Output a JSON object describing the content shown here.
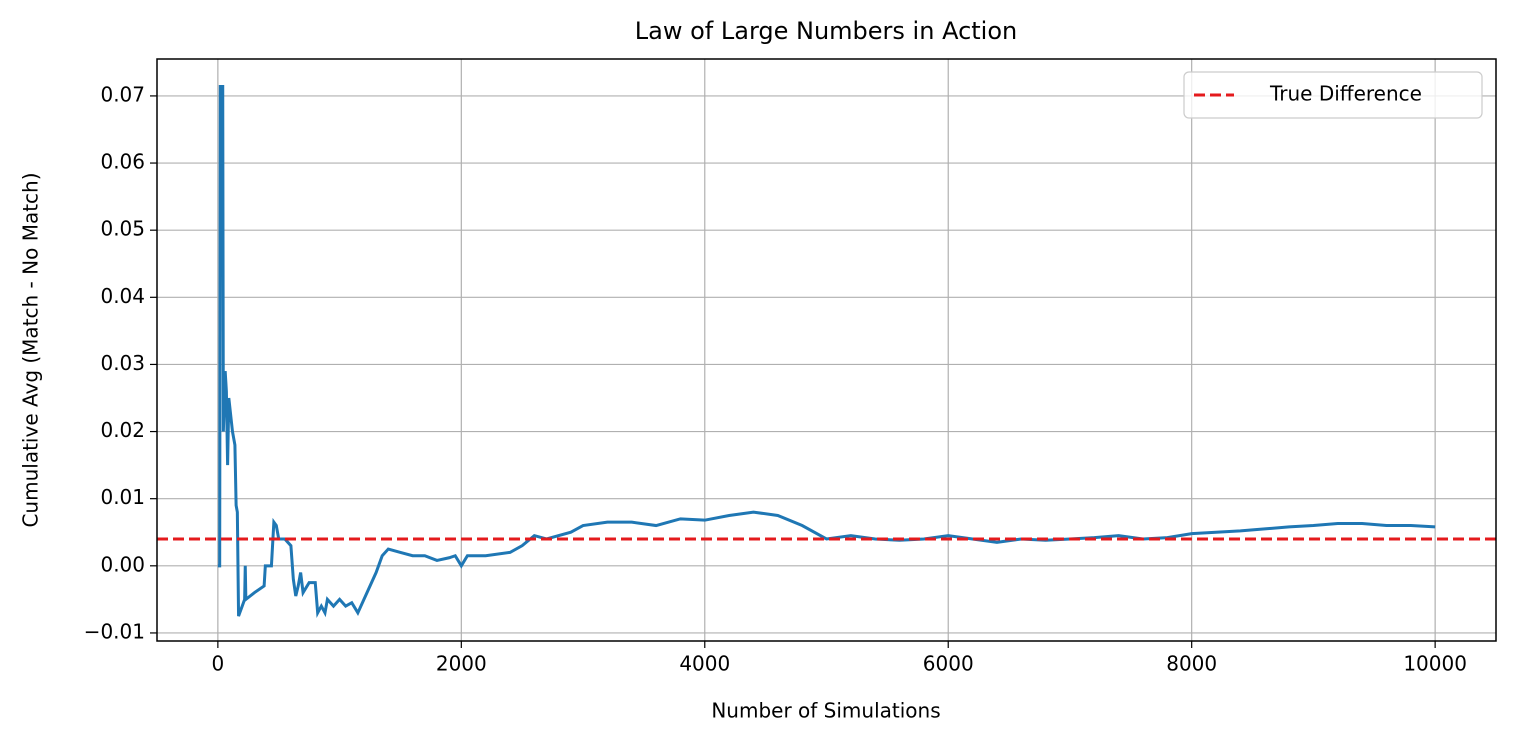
{
  "chart_data": {
    "type": "line",
    "title": "Law of Large Numbers in Action",
    "x_label": "Number of Simulations",
    "y_label": "Cumulative Avg (Match - No Match)",
    "x": [
      0,
      15,
      20,
      40,
      45,
      60,
      70,
      80,
      90,
      120,
      140,
      150,
      160,
      170,
      200,
      220,
      225,
      230,
      300,
      380,
      390,
      440,
      460,
      480,
      500,
      550,
      600,
      620,
      640,
      660,
      680,
      700,
      750,
      800,
      820,
      850,
      880,
      900,
      950,
      1000,
      1050,
      1100,
      1150,
      1200,
      1300,
      1350,
      1400,
      1500,
      1600,
      1700,
      1800,
      1900,
      1950,
      2000,
      2050,
      2200,
      2400,
      2500,
      2600,
      2700,
      2900,
      3000,
      3200,
      3400,
      3600,
      3800,
      4000,
      4200,
      4400,
      4600,
      4800,
      5000,
      5200,
      5400,
      5600,
      5800,
      6000,
      6200,
      6400,
      6600,
      6800,
      7000,
      7200,
      7400,
      7600,
      7800,
      8000,
      8200,
      8400,
      8600,
      8800,
      9000,
      9200,
      9400,
      9600,
      9800,
      10000
    ],
    "series": [
      {
        "color": "#1f77b4",
        "values": [
          0,
          0,
          0.0714,
          0.0714,
          0.02,
          0.029,
          0.026,
          0.015,
          0.025,
          0.02,
          0.018,
          0.009,
          0.008,
          -0.0075,
          -0.006,
          -0.005,
          0,
          -0.005,
          -0.004,
          -0.003,
          0,
          0,
          0.0065,
          0.006,
          0.004,
          0.004,
          0.003,
          -0.002,
          -0.0045,
          -0.003,
          -0.001,
          -0.004,
          -0.0025,
          -0.0025,
          -0.007,
          -0.006,
          -0.007,
          -0.005,
          -0.006,
          -0.005,
          -0.006,
          -0.0055,
          -0.007,
          -0.005,
          -0.001,
          0.0015,
          0.0025,
          0.002,
          0.0015,
          0.0015,
          0.0008,
          0.0012,
          0.0015,
          0,
          0.0015,
          0.0015,
          0.002,
          0.003,
          0.0045,
          0.004,
          0.005,
          0.006,
          0.0065,
          0.0065,
          0.006,
          0.007,
          0.0068,
          0.0075,
          0.008,
          0.0075,
          0.006,
          0.004,
          0.0045,
          0.004,
          0.0038,
          0.004,
          0.0045,
          0.004,
          0.0035,
          0.004,
          0.0038,
          0.004,
          0.0042,
          0.0045,
          0.004,
          0.0042,
          0.0048,
          0.005,
          0.0052,
          0.0055,
          0.0058,
          0.006,
          0.0063,
          0.0063,
          0.006,
          0.006,
          0.0058
        ]
      }
    ],
    "hlines": [
      {
        "name": "True Difference",
        "value": 0.004,
        "color": "#e41a1c",
        "style": "dashed"
      }
    ],
    "xlim": [
      -500,
      10500
    ],
    "ylim": [
      -0.0112,
      0.0755
    ],
    "xticks": [
      0,
      2000,
      4000,
      6000,
      8000,
      10000
    ],
    "yticks": [
      {
        "value": -0.01,
        "label": "−0.01"
      },
      {
        "value": 0,
        "label": "0.00"
      },
      0.01,
      0.02,
      0.03,
      0.04,
      0.05,
      0.06,
      0.07
    ],
    "grid": true,
    "legend": "upper right"
  }
}
